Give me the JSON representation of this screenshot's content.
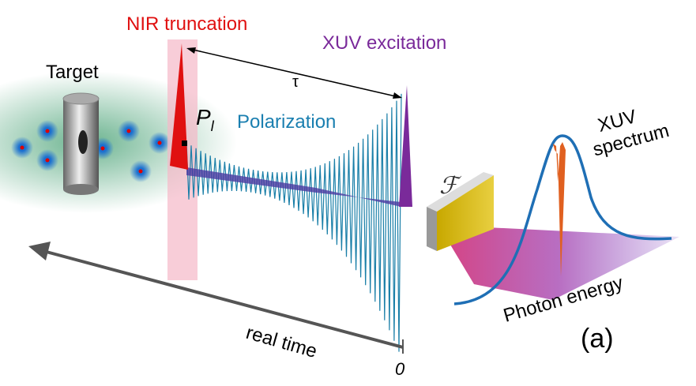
{
  "labels": {
    "nir": "NIR truncation",
    "xuv_excitation": "XUV excitation",
    "target": "Target",
    "tau": "τ",
    "p": "P",
    "p_sub": "l",
    "polarization": "Polarization",
    "spectrum_line1": "XUV",
    "spectrum_line2": "spectrum",
    "fourier": "ℱ",
    "photon_energy": "Photon energy",
    "panel": "(a)",
    "real_time": "real time",
    "zero": "0"
  }
}
